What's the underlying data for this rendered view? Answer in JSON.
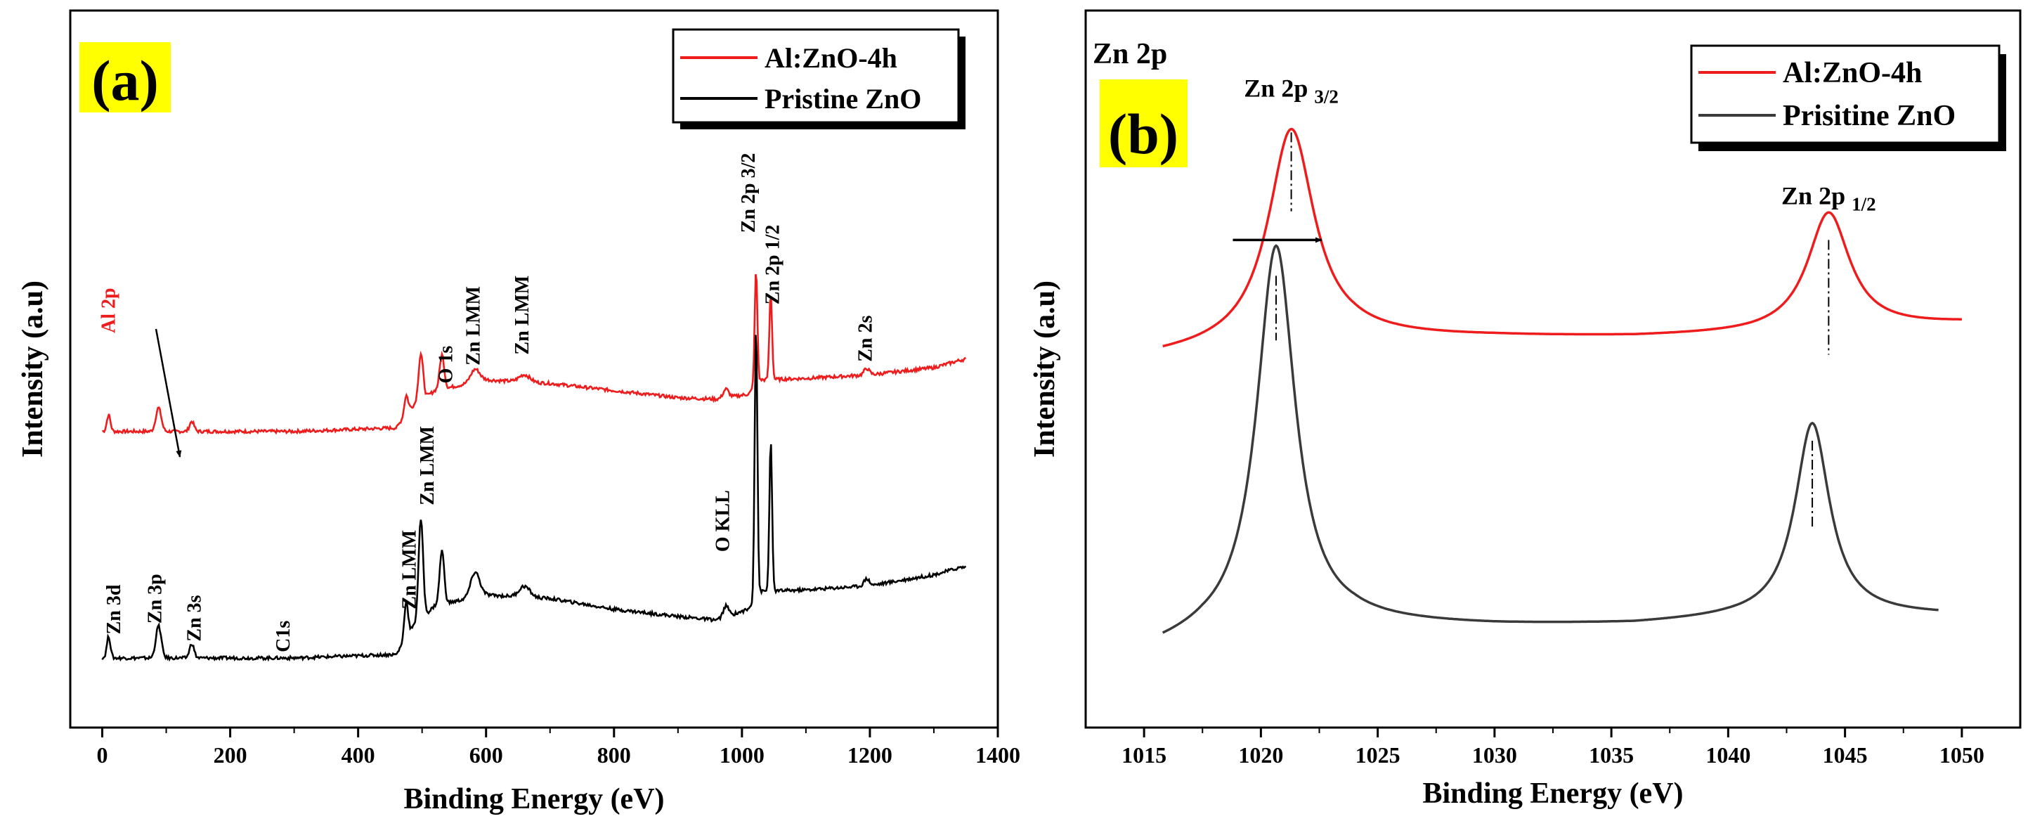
{
  "figure": {
    "panels": [
      "(a)",
      "(b)"
    ]
  },
  "colors": {
    "al_zno": "#ee1c1c",
    "pristine_a": "#000000",
    "pristine_b": "#3a3a3a",
    "highlight": "#ffff00",
    "axis": "#000000"
  },
  "chart_data": [
    {
      "panel_label": "(a)",
      "type": "line",
      "title": "",
      "xlabel": "Binding Energy (eV)",
      "ylabel": "Intensity (a.u)",
      "xlim": [
        -50,
        1400
      ],
      "ylim": [
        0,
        100
      ],
      "xticks": [
        0,
        200,
        400,
        600,
        800,
        1000,
        1200,
        1400
      ],
      "grid": false,
      "legend": {
        "position": "top-right",
        "entries": [
          "Al:ZnO-4h",
          "Pristine ZnO"
        ]
      },
      "series": [
        {
          "name": "Al:ZnO-4h",
          "color": "#ee1c1c",
          "baseline": [
            [
              0,
              41.3
            ],
            [
              100,
              41.3
            ],
            [
              300,
              41.3
            ],
            [
              460,
              41.8
            ],
            [
              480,
              44.5
            ],
            [
              520,
              47.0
            ],
            [
              600,
              48.5
            ],
            [
              700,
              48.0
            ],
            [
              800,
              47.0
            ],
            [
              900,
              46.0
            ],
            [
              960,
              45.8
            ],
            [
              1010,
              46.5
            ],
            [
              1030,
              48.5
            ],
            [
              1100,
              48.7
            ],
            [
              1200,
              49.2
            ],
            [
              1300,
              50.2
            ],
            [
              1340,
              51.2
            ],
            [
              1350,
              51.4
            ]
          ],
          "peaks": [
            {
              "center": 10,
              "height": 2.3,
              "width": 4
            },
            {
              "center": 88,
              "height": 3.3,
              "width": 6
            },
            {
              "center": 140,
              "height": 1.4,
              "width": 5
            },
            {
              "center": 475,
              "height": 2.5,
              "width": 4
            },
            {
              "center": 498,
              "height": 6.5,
              "width": 5
            },
            {
              "center": 531,
              "height": 4.8,
              "width": 5
            },
            {
              "center": 583,
              "height": 1.8,
              "width": 10
            },
            {
              "center": 660,
              "height": 1.0,
              "width": 12
            },
            {
              "center": 975,
              "height": 1.2,
              "width": 6
            },
            {
              "center": 1022,
              "height": 16.0,
              "width": 3
            },
            {
              "center": 1045,
              "height": 12.0,
              "width": 3
            },
            {
              "center": 1195,
              "height": 0.9,
              "width": 6
            }
          ]
        },
        {
          "name": "Pristine ZnO",
          "color": "#000000",
          "baseline": [
            [
              0,
              9.7
            ],
            [
              100,
              9.7
            ],
            [
              300,
              9.7
            ],
            [
              460,
              10.2
            ],
            [
              480,
              13.5
            ],
            [
              520,
              17.0
            ],
            [
              600,
              18.5
            ],
            [
              700,
              18.0
            ],
            [
              800,
              16.5
            ],
            [
              900,
              15.5
            ],
            [
              960,
              15.0
            ],
            [
              1010,
              16.5
            ],
            [
              1030,
              19.0
            ],
            [
              1100,
              19.2
            ],
            [
              1200,
              19.8
            ],
            [
              1300,
              21.3
            ],
            [
              1340,
              22.3
            ],
            [
              1350,
              22.4
            ]
          ],
          "peaks": [
            {
              "center": 10,
              "height": 3.0,
              "width": 4
            },
            {
              "center": 88,
              "height": 4.5,
              "width": 6
            },
            {
              "center": 140,
              "height": 2.0,
              "width": 5
            },
            {
              "center": 475,
              "height": 5.0,
              "width": 4
            },
            {
              "center": 498,
              "height": 14.0,
              "width": 5
            },
            {
              "center": 531,
              "height": 7.5,
              "width": 5
            },
            {
              "center": 583,
              "height": 3.5,
              "width": 10
            },
            {
              "center": 660,
              "height": 1.5,
              "width": 12
            },
            {
              "center": 975,
              "height": 1.5,
              "width": 6
            },
            {
              "center": 1022,
              "height": 38.0,
              "width": 3
            },
            {
              "center": 1045,
              "height": 21.0,
              "width": 3
            },
            {
              "center": 1195,
              "height": 1.0,
              "width": 6
            }
          ]
        }
      ],
      "annotations": [
        {
          "text": "Al 2p",
          "x": 20,
          "y": 55,
          "rotation": -90,
          "color": "#ee1c1c"
        },
        {
          "text": "O 1s",
          "x": 547,
          "y": 48,
          "rotation": -90,
          "color": "#000000"
        },
        {
          "text": "Zn LMM",
          "x": 590,
          "y": 50.5,
          "rotation": -90,
          "color": "#000000"
        },
        {
          "text": "Zn LMM",
          "x": 666,
          "y": 52,
          "rotation": -90,
          "color": "#000000"
        },
        {
          "text": "Zn 2p 3/2",
          "x": 1020,
          "y": 69,
          "rotation": -90,
          "color": "#000000"
        },
        {
          "text": "Zn 2p 1/2",
          "x": 1058,
          "y": 59,
          "rotation": -90,
          "color": "#000000"
        },
        {
          "text": "Zn 2s",
          "x": 1203,
          "y": 51,
          "rotation": -90,
          "color": "#000000"
        },
        {
          "text": "Zn 3d",
          "x": 28,
          "y": 13,
          "rotation": -90,
          "color": "#000000"
        },
        {
          "text": "Zn 3p",
          "x": 92,
          "y": 14.5,
          "rotation": -90,
          "color": "#000000"
        },
        {
          "text": "Zn 3s",
          "x": 154,
          "y": 12,
          "rotation": -90,
          "color": "#000000"
        },
        {
          "text": "C1s",
          "x": 293,
          "y": 10.5,
          "rotation": -90,
          "color": "#000000"
        },
        {
          "text": "Zn LMM",
          "x": 490,
          "y": 16.5,
          "rotation": -90,
          "color": "#000000"
        },
        {
          "text": "Zn LMM",
          "x": 518,
          "y": 31,
          "rotation": -90,
          "color": "#000000"
        },
        {
          "text": "O KLL",
          "x": 980,
          "y": 24.5,
          "rotation": -90,
          "color": "#000000"
        }
      ]
    },
    {
      "panel_label": "(b)",
      "section_label": "Zn 2p",
      "type": "line",
      "title": "",
      "xlabel": "Binding Energy (eV)",
      "ylabel": "Intensity (a.u)",
      "xlim": [
        1012.5,
        1052.5
      ],
      "ylim": [
        0,
        100
      ],
      "xticks": [
        1015,
        1020,
        1025,
        1030,
        1035,
        1040,
        1045,
        1050
      ],
      "grid": false,
      "legend": {
        "position": "top-right",
        "entries": [
          "Al:ZnO-4h",
          "Prisitine ZnO"
        ]
      },
      "series": [
        {
          "name": "Al:ZnO-4h",
          "color": "#ee1c1c",
          "x_range": [
            1015.8,
            1050
          ],
          "baseline": [
            [
              1015.8,
              51.8
            ],
            [
              1018,
              52.5
            ],
            [
              1024,
              54.2
            ],
            [
              1030,
              54.4
            ],
            [
              1036,
              54.4
            ],
            [
              1041,
              54.8
            ],
            [
              1046,
              55.5
            ],
            [
              1050,
              56.3
            ]
          ],
          "peaks": [
            {
              "center": 1021.3,
              "height": 30.0,
              "width": 1.2
            },
            {
              "center": 1044.3,
              "height": 16.5,
              "width": 1.1
            }
          ]
        },
        {
          "name": "Prisitine ZnO",
          "color": "#3a3a3a",
          "x_range": [
            1015.8,
            1049
          ],
          "baseline": [
            [
              1015.8,
              11.0
            ],
            [
              1017.5,
              12.2
            ],
            [
              1024,
              14.2
            ],
            [
              1030,
              14.1
            ],
            [
              1036,
              14.3
            ],
            [
              1040,
              15.0
            ],
            [
              1045,
              15.5
            ],
            [
              1049,
              15.6
            ]
          ],
          "peaks": [
            {
              "center": 1020.65,
              "height": 54.0,
              "width": 1.0
            },
            {
              "center": 1043.6,
              "height": 27.0,
              "width": 0.9
            }
          ]
        }
      ],
      "annotations": [
        {
          "text": "Zn 2p",
          "sub": "3/2",
          "x": 1021.3,
          "y": 88
        },
        {
          "text": "Zn 2p",
          "sub": "1/2",
          "x": 1044.3,
          "y": 73
        }
      ],
      "markers": [
        {
          "x": 1021.3,
          "y0": 72,
          "y1": 83
        },
        {
          "x": 1044.3,
          "y0": 52,
          "y1": 68
        },
        {
          "x": 1020.65,
          "y0": 54,
          "y1": 63
        },
        {
          "x": 1043.6,
          "y0": 28,
          "y1": 40
        }
      ],
      "shift_arrow": {
        "x0": 1018.8,
        "x1": 1022.6,
        "y": 68
      }
    }
  ]
}
